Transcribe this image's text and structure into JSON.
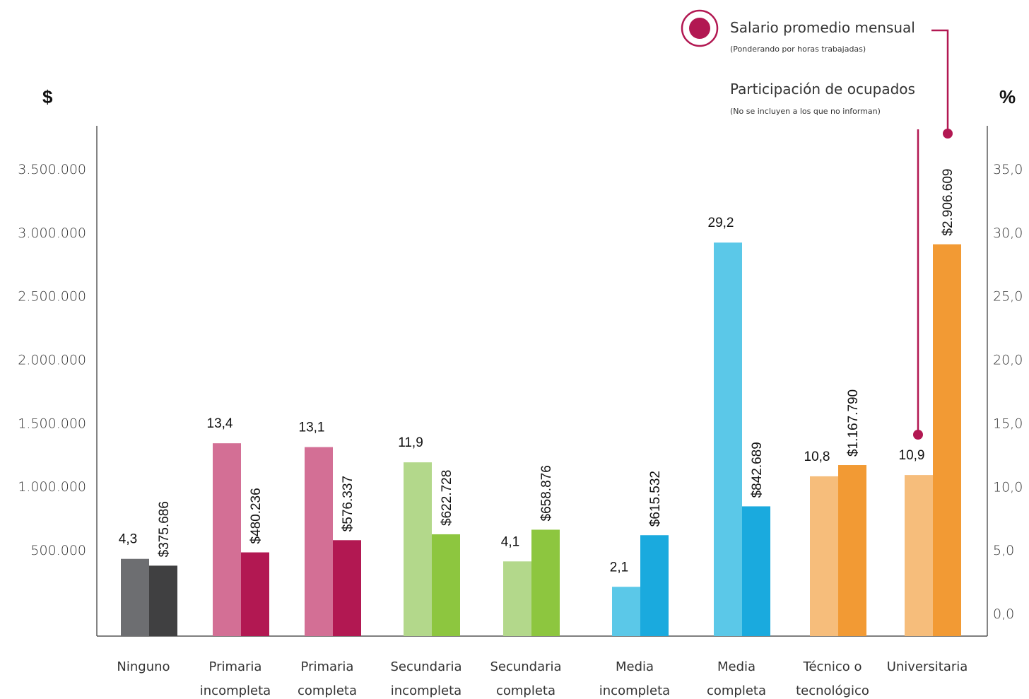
{
  "chart_data": {
    "type": "bar",
    "left_axis_unit": "$",
    "right_axis_unit": "%",
    "left_ticks": [
      "500.000",
      "1.000.000",
      "1.500.000",
      "2.000.000",
      "2.500.000",
      "3.000.000",
      "3.500.000"
    ],
    "left_tick_values": [
      500000,
      1000000,
      1500000,
      2000000,
      2500000,
      3000000,
      3500000
    ],
    "right_ticks": [
      "0,0",
      "5,0",
      "10,0",
      "15,0",
      "20,0",
      "25,0",
      "30,0",
      "35,0"
    ],
    "right_tick_values": [
      0,
      5,
      10,
      15,
      20,
      25,
      30,
      35
    ],
    "categories": [
      [
        "Ninguno"
      ],
      [
        "Primaria",
        "incompleta"
      ],
      [
        "Primaria",
        "completa"
      ],
      [
        "Secundaria",
        "incompleta"
      ],
      [
        "Secundaria",
        "completa"
      ],
      [
        "Media",
        "incompleta"
      ],
      [
        "Media",
        "completa"
      ],
      [
        "Técnico o",
        "tecnológico"
      ],
      [
        "Universitaria"
      ]
    ],
    "series": [
      {
        "name": "Participación de ocupados",
        "note": "(No se incluyen a los que no informan)",
        "axis": "right",
        "values": [
          4.3,
          13.4,
          13.1,
          11.9,
          4.1,
          2.1,
          29.2,
          10.8,
          10.9
        ],
        "labels": [
          "4,3",
          "13,4",
          "13,1",
          "11,9",
          "4,1",
          "2,1",
          "29,2",
          "10,8",
          "10,9"
        ]
      },
      {
        "name": "Salario promedio mensual",
        "note": "(Ponderando por horas trabajadas)",
        "axis": "left",
        "values": [
          375686,
          480236,
          576337,
          622728,
          658876,
          615532,
          842689,
          1167790,
          2906609
        ],
        "labels": [
          "$375.686",
          "$480.236",
          "$576.337",
          "$622.728",
          "$658.876",
          "$615.532",
          "$842.689",
          "$1.167.790",
          "$2.906.609"
        ]
      }
    ],
    "colors": {
      "participacion": [
        "#6d6e71",
        "#d36f95",
        "#d36f95",
        "#b3d88b",
        "#b3d88b",
        "#5bc8e8",
        "#5bc8e8",
        "#f6bd7b",
        "#f6bd7b"
      ],
      "salario": [
        "#404041",
        "#b21852",
        "#b21852",
        "#8dc63f",
        "#8dc63f",
        "#1aaade",
        "#1aaade",
        "#f29a34",
        "#f29a34"
      ],
      "accent": "#b21852"
    },
    "grid": false,
    "legend_position": "top-right"
  }
}
